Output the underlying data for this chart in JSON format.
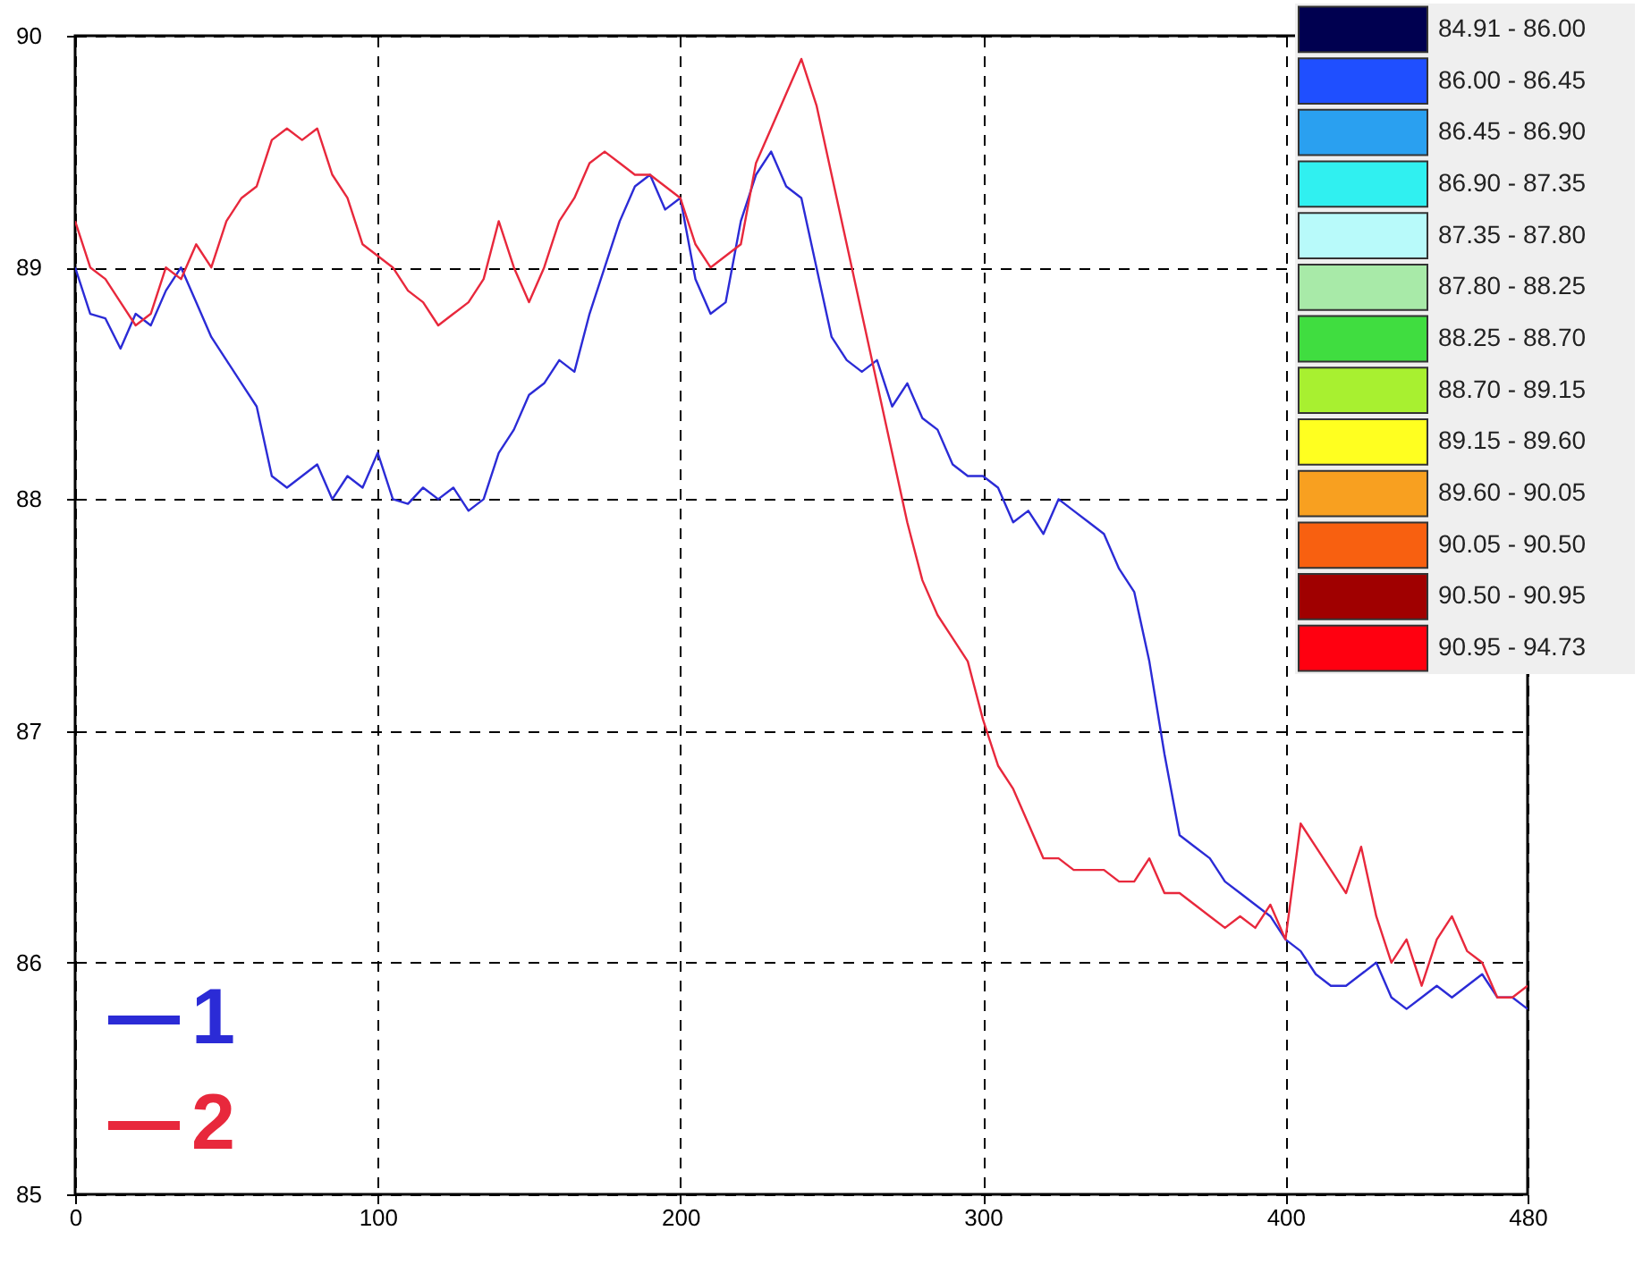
{
  "chart_data": [
    {
      "type": "line",
      "xlim": [
        0,
        480
      ],
      "xticks": [
        0,
        100,
        200,
        300,
        400,
        480
      ],
      "ylim": [
        85,
        90
      ],
      "yticks": [
        85,
        86,
        87,
        88,
        89,
        90
      ],
      "grid": true,
      "line_style": "solid",
      "legend": "bottom left",
      "x": [
        0,
        5,
        10,
        15,
        20,
        25,
        30,
        35,
        40,
        45,
        50,
        55,
        60,
        65,
        70,
        75,
        80,
        85,
        90,
        95,
        100,
        105,
        110,
        115,
        120,
        125,
        130,
        135,
        140,
        145,
        150,
        155,
        160,
        165,
        170,
        175,
        180,
        185,
        190,
        195,
        200,
        205,
        210,
        215,
        220,
        225,
        230,
        235,
        240,
        245,
        250,
        255,
        260,
        265,
        270,
        275,
        280,
        285,
        290,
        295,
        300,
        305,
        310,
        315,
        320,
        325,
        330,
        335,
        340,
        345,
        350,
        355,
        360,
        365,
        370,
        375,
        380,
        385,
        390,
        395,
        400,
        405,
        410,
        415,
        420,
        425,
        430,
        435,
        440,
        445,
        450,
        455,
        460,
        465,
        470,
        475,
        480
      ],
      "series": [
        {
          "name": "1",
          "color": "#2b2bd6",
          "values": [
            89.0,
            88.8,
            88.78,
            88.65,
            88.8,
            88.75,
            88.9,
            89.0,
            88.85,
            88.7,
            88.6,
            88.5,
            88.4,
            88.1,
            88.05,
            88.1,
            88.15,
            88.0,
            88.1,
            88.05,
            88.2,
            88.0,
            87.98,
            88.05,
            88.0,
            88.05,
            87.95,
            88.0,
            88.2,
            88.3,
            88.45,
            88.5,
            88.6,
            88.55,
            88.8,
            89.0,
            89.2,
            89.35,
            89.4,
            89.25,
            89.3,
            88.95,
            88.8,
            88.85,
            89.2,
            89.4,
            89.5,
            89.35,
            89.3,
            89.0,
            88.7,
            88.6,
            88.55,
            88.6,
            88.4,
            88.5,
            88.35,
            88.3,
            88.15,
            88.1,
            88.1,
            88.05,
            87.9,
            87.95,
            87.85,
            88.0,
            87.95,
            87.9,
            87.85,
            87.7,
            87.6,
            87.3,
            86.9,
            86.55,
            86.5,
            86.45,
            86.35,
            86.3,
            86.25,
            86.2,
            86.1,
            86.05,
            85.95,
            85.9,
            85.9,
            85.95,
            86.0,
            85.85,
            85.8,
            85.85,
            85.9,
            85.85,
            85.9,
            85.95,
            85.85,
            85.85,
            85.8
          ]
        },
        {
          "name": "2",
          "color": "#e8283c",
          "values": [
            89.2,
            89.0,
            88.95,
            88.85,
            88.75,
            88.8,
            89.0,
            88.95,
            89.1,
            89.0,
            89.2,
            89.3,
            89.35,
            89.55,
            89.6,
            89.55,
            89.6,
            89.4,
            89.3,
            89.1,
            89.05,
            89.0,
            88.9,
            88.85,
            88.75,
            88.8,
            88.85,
            88.95,
            89.2,
            89.0,
            88.85,
            89.0,
            89.2,
            89.3,
            89.45,
            89.5,
            89.45,
            89.4,
            89.4,
            89.35,
            89.3,
            89.1,
            89.0,
            89.05,
            89.1,
            89.45,
            89.6,
            89.75,
            89.9,
            89.7,
            89.4,
            89.1,
            88.8,
            88.5,
            88.2,
            87.9,
            87.65,
            87.5,
            87.4,
            87.3,
            87.05,
            86.85,
            86.75,
            86.6,
            86.45,
            86.45,
            86.4,
            86.4,
            86.4,
            86.35,
            86.35,
            86.45,
            86.3,
            86.3,
            86.25,
            86.2,
            86.15,
            86.2,
            86.15,
            86.25,
            86.1,
            86.6,
            86.5,
            86.4,
            86.3,
            86.5,
            86.2,
            86.0,
            86.1,
            85.9,
            86.1,
            86.2,
            86.05,
            86.0,
            85.85,
            85.85,
            85.9
          ]
        }
      ]
    },
    {
      "type": "other",
      "categories": [
        "84.91 - 86.00",
        "86.00 - 86.45",
        "86.45 - 86.90",
        "86.90 - 87.35",
        "87.35 - 87.80",
        "87.80 - 88.25",
        "88.25 - 88.70",
        "88.70 - 89.15",
        "89.15 - 89.60",
        "89.60 - 90.05",
        "90.05 - 90.50",
        "90.50 - 90.95",
        "90.95 - 94.73"
      ],
      "colors": [
        "#000050",
        "#1f4fff",
        "#2aa0f0",
        "#30f0f0",
        "#b8fafa",
        "#a8eaa8",
        "#40dd40",
        "#a8f030",
        "#ffff20",
        "#f8a020",
        "#f86010",
        "#a00000",
        "#ff0010"
      ]
    }
  ]
}
